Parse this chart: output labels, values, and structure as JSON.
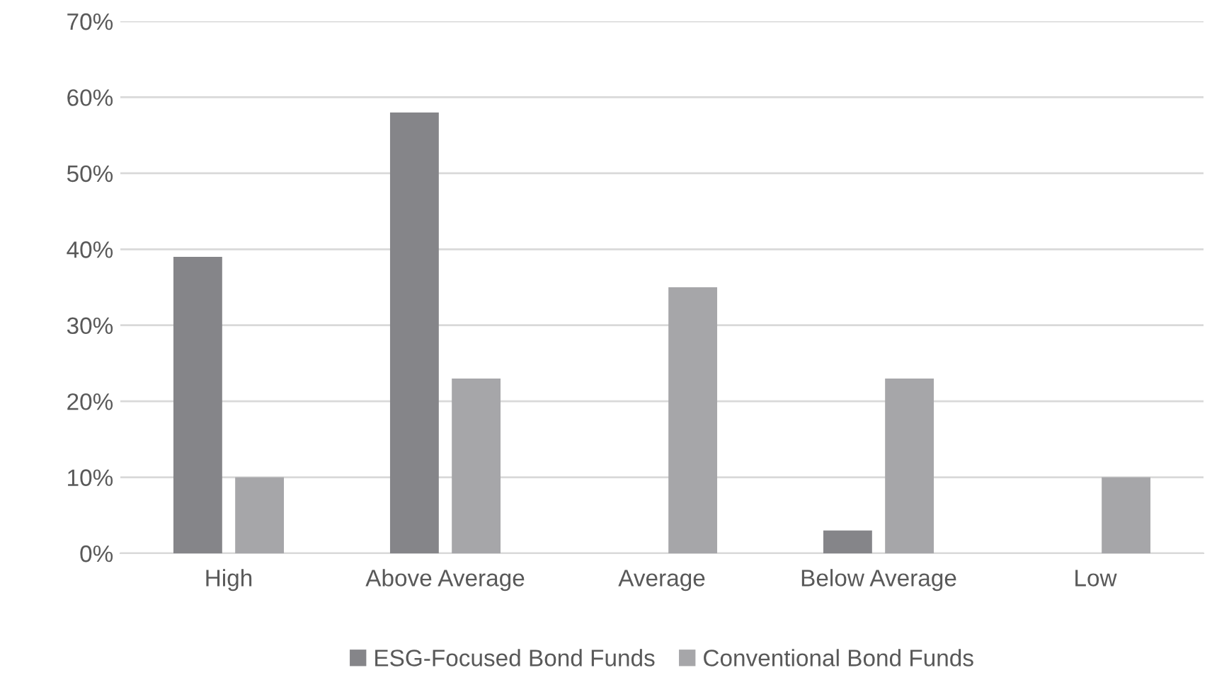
{
  "chart_data": {
    "type": "bar",
    "categories": [
      "High",
      "Above Average",
      "Average",
      "Below Average",
      "Low"
    ],
    "series": [
      {
        "name": "ESG-Focused Bond Funds",
        "color": "#858589",
        "values": [
          39,
          58,
          0,
          3,
          0
        ]
      },
      {
        "name": "Conventional Bond Funds",
        "color": "#a6a6a9",
        "values": [
          10,
          23,
          35,
          23,
          10
        ]
      }
    ],
    "ylim": [
      0,
      70
    ],
    "yticks": [
      {
        "value": 0,
        "label": "0%"
      },
      {
        "value": 10,
        "label": "10%"
      },
      {
        "value": 20,
        "label": "20%"
      },
      {
        "value": 30,
        "label": "30%"
      },
      {
        "value": 40,
        "label": "40%"
      },
      {
        "value": 50,
        "label": "50%"
      },
      {
        "value": 60,
        "label": "60%"
      },
      {
        "value": 70,
        "label": "70%"
      }
    ],
    "grid": "y",
    "legend": "bottom"
  }
}
